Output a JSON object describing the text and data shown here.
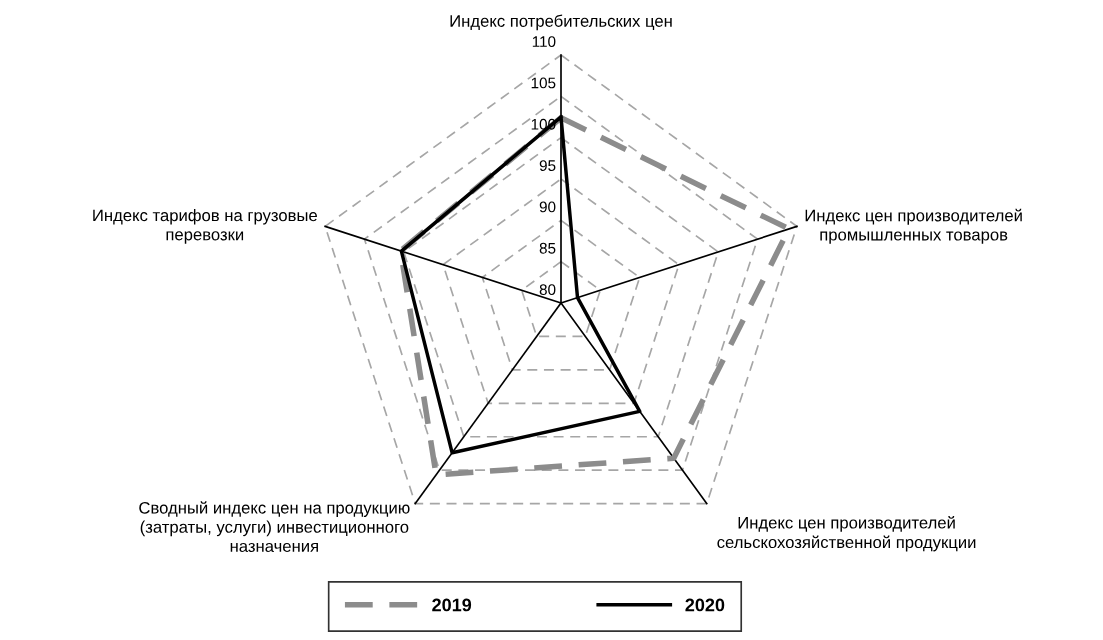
{
  "chart_data": {
    "type": "radar",
    "categories": [
      "Индекс потребительских цен",
      "Индекс цен производителей\nпромышленных товаров",
      "Индекс цен производителей\nсельскохозяйственной продукции",
      "Сводный индекс цен на продукцию\n(затраты, услуги) инвестиционного\nназначения",
      "Индекс тарифов на грузовые\nперевозки"
    ],
    "series": [
      {
        "name": "2019",
        "color": "#8c8c8c",
        "line_style": "dashed",
        "values": [
          102.4,
          109.0,
          103.2,
          105.7,
          100.4
        ]
      },
      {
        "name": "2020",
        "color": "#000000",
        "line_style": "solid",
        "values": [
          102.5,
          82.1,
          96.2,
          102.4,
          100.3
        ]
      }
    ],
    "ylim": [
      80,
      110
    ],
    "yticks": [
      80,
      85,
      90,
      95,
      100,
      105,
      110
    ],
    "grid": true,
    "legend": "bottom",
    "marker": "none"
  }
}
